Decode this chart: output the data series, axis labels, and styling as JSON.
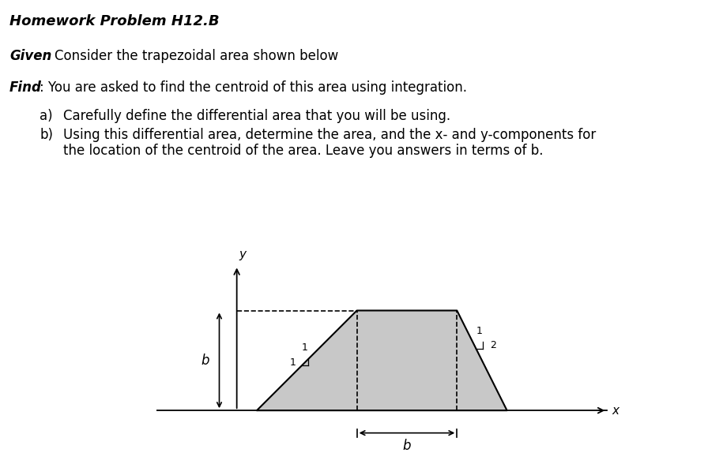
{
  "title": "Homework Problem H12.B",
  "given_bold": "Given",
  "given_rest": ": Consider the trapezoidal area shown below",
  "find_bold": "Find",
  "find_rest": ": You are asked to find the centroid of this area using integration.",
  "item_a_label": "a)",
  "item_a_text": "Carefully define the differential area that you will be using.",
  "item_b_label": "b)",
  "item_b_text1": "Using this differential area, determine the area, and the x- and y-components for",
  "item_b_text2": "the location of the centroid of the area. Leave you answers in terms of b.",
  "bg_color": "#ffffff",
  "trap_fill": "#c8c8c8",
  "trap_edge": "#000000",
  "y_label": "y",
  "x_label": "x",
  "b_height_label": "b",
  "b_width_label": "b",
  "slope_left_horiz": "1",
  "slope_left_vert": "1",
  "slope_right_horiz": "1",
  "slope_right_vert": "2",
  "font_size_title": 13,
  "font_size_body": 12,
  "font_size_diagram": 11
}
